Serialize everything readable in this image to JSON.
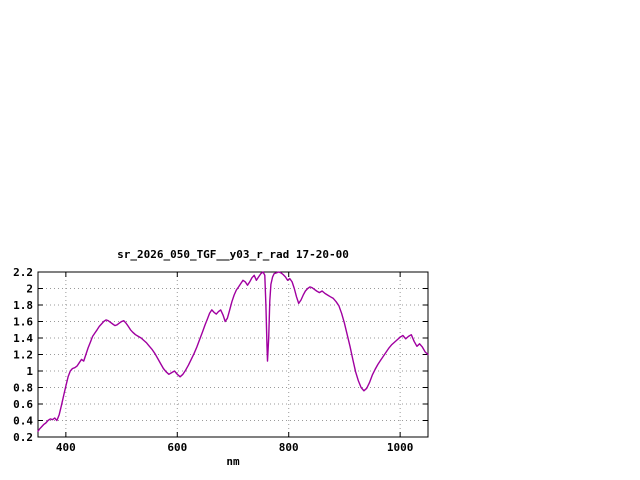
{
  "page": {
    "background": "#ffffff"
  },
  "chart_data": {
    "type": "line",
    "title": "sr_2026_050_TGF__y03_r_rad 17-20-00",
    "xlabel": "nm",
    "ylabel": "",
    "xlim": [
      350,
      1050
    ],
    "ylim": [
      0.2,
      2.2
    ],
    "xticks": [
      400,
      600,
      800,
      1000
    ],
    "yticks": [
      0.2,
      0.4,
      0.6,
      0.8,
      1.0,
      1.2,
      1.4,
      1.6,
      1.8,
      2.0,
      2.2
    ],
    "ytick_labels": [
      "0.2",
      "0.4",
      "0.6",
      "0.8",
      "1",
      "1.2",
      "1.4",
      "1.6",
      "1.8",
      "2",
      "2.2"
    ],
    "grid": true,
    "legend": "none",
    "line_color": "#a000a0",
    "series": [
      {
        "name": "sr_2026_050_TGF__y03_r_rad",
        "points": [
          [
            350,
            0.27
          ],
          [
            353,
            0.3
          ],
          [
            356,
            0.32
          ],
          [
            360,
            0.35
          ],
          [
            364,
            0.37
          ],
          [
            368,
            0.4
          ],
          [
            372,
            0.42
          ],
          [
            376,
            0.41
          ],
          [
            380,
            0.43
          ],
          [
            384,
            0.4
          ],
          [
            388,
            0.47
          ],
          [
            392,
            0.58
          ],
          [
            396,
            0.7
          ],
          [
            400,
            0.82
          ],
          [
            404,
            0.93
          ],
          [
            408,
            1.0
          ],
          [
            412,
            1.03
          ],
          [
            416,
            1.04
          ],
          [
            420,
            1.06
          ],
          [
            424,
            1.1
          ],
          [
            428,
            1.14
          ],
          [
            432,
            1.12
          ],
          [
            436,
            1.2
          ],
          [
            440,
            1.28
          ],
          [
            444,
            1.35
          ],
          [
            448,
            1.42
          ],
          [
            452,
            1.46
          ],
          [
            456,
            1.5
          ],
          [
            460,
            1.54
          ],
          [
            464,
            1.57
          ],
          [
            468,
            1.6
          ],
          [
            472,
            1.62
          ],
          [
            476,
            1.61
          ],
          [
            480,
            1.59
          ],
          [
            484,
            1.57
          ],
          [
            488,
            1.55
          ],
          [
            492,
            1.56
          ],
          [
            496,
            1.58
          ],
          [
            500,
            1.6
          ],
          [
            504,
            1.61
          ],
          [
            508,
            1.58
          ],
          [
            512,
            1.54
          ],
          [
            516,
            1.5
          ],
          [
            520,
            1.47
          ],
          [
            525,
            1.44
          ],
          [
            530,
            1.42
          ],
          [
            535,
            1.4
          ],
          [
            540,
            1.37
          ],
          [
            545,
            1.34
          ],
          [
            550,
            1.3
          ],
          [
            555,
            1.26
          ],
          [
            560,
            1.21
          ],
          [
            565,
            1.15
          ],
          [
            570,
            1.09
          ],
          [
            575,
            1.03
          ],
          [
            580,
            0.99
          ],
          [
            585,
            0.96
          ],
          [
            590,
            0.98
          ],
          [
            595,
            1.0
          ],
          [
            600,
            0.96
          ],
          [
            605,
            0.93
          ],
          [
            610,
            0.96
          ],
          [
            615,
            1.01
          ],
          [
            620,
            1.07
          ],
          [
            625,
            1.14
          ],
          [
            630,
            1.21
          ],
          [
            635,
            1.29
          ],
          [
            640,
            1.38
          ],
          [
            645,
            1.47
          ],
          [
            650,
            1.56
          ],
          [
            654,
            1.63
          ],
          [
            658,
            1.7
          ],
          [
            662,
            1.74
          ],
          [
            666,
            1.71
          ],
          [
            670,
            1.69
          ],
          [
            674,
            1.72
          ],
          [
            678,
            1.74
          ],
          [
            682,
            1.68
          ],
          [
            686,
            1.6
          ],
          [
            690,
            1.64
          ],
          [
            694,
            1.74
          ],
          [
            698,
            1.84
          ],
          [
            702,
            1.92
          ],
          [
            706,
            1.98
          ],
          [
            710,
            2.02
          ],
          [
            714,
            2.06
          ],
          [
            718,
            2.1
          ],
          [
            722,
            2.08
          ],
          [
            726,
            2.04
          ],
          [
            730,
            2.08
          ],
          [
            734,
            2.13
          ],
          [
            738,
            2.16
          ],
          [
            742,
            2.1
          ],
          [
            746,
            2.14
          ],
          [
            750,
            2.18
          ],
          [
            754,
            2.2
          ],
          [
            757,
            2.16
          ],
          [
            759,
            1.8
          ],
          [
            761,
            1.3
          ],
          [
            762,
            1.12
          ],
          [
            764,
            1.4
          ],
          [
            766,
            1.85
          ],
          [
            768,
            2.05
          ],
          [
            771,
            2.14
          ],
          [
            774,
            2.18
          ],
          [
            778,
            2.19
          ],
          [
            782,
            2.2
          ],
          [
            786,
            2.19
          ],
          [
            790,
            2.17
          ],
          [
            794,
            2.14
          ],
          [
            798,
            2.1
          ],
          [
            802,
            2.12
          ],
          [
            806,
            2.08
          ],
          [
            810,
            2.0
          ],
          [
            814,
            1.9
          ],
          [
            818,
            1.82
          ],
          [
            822,
            1.86
          ],
          [
            826,
            1.92
          ],
          [
            830,
            1.97
          ],
          [
            834,
            2.0
          ],
          [
            838,
            2.02
          ],
          [
            842,
            2.01
          ],
          [
            846,
            1.99
          ],
          [
            850,
            1.97
          ],
          [
            855,
            1.95
          ],
          [
            860,
            1.97
          ],
          [
            865,
            1.94
          ],
          [
            870,
            1.92
          ],
          [
            875,
            1.9
          ],
          [
            880,
            1.88
          ],
          [
            885,
            1.84
          ],
          [
            890,
            1.79
          ],
          [
            895,
            1.7
          ],
          [
            900,
            1.58
          ],
          [
            905,
            1.44
          ],
          [
            910,
            1.3
          ],
          [
            915,
            1.14
          ],
          [
            920,
            0.99
          ],
          [
            925,
            0.88
          ],
          [
            930,
            0.8
          ],
          [
            935,
            0.76
          ],
          [
            940,
            0.79
          ],
          [
            945,
            0.86
          ],
          [
            950,
            0.95
          ],
          [
            955,
            1.02
          ],
          [
            960,
            1.08
          ],
          [
            965,
            1.13
          ],
          [
            970,
            1.18
          ],
          [
            975,
            1.23
          ],
          [
            980,
            1.28
          ],
          [
            985,
            1.32
          ],
          [
            990,
            1.35
          ],
          [
            995,
            1.38
          ],
          [
            1000,
            1.41
          ],
          [
            1005,
            1.43
          ],
          [
            1010,
            1.39
          ],
          [
            1015,
            1.42
          ],
          [
            1020,
            1.44
          ],
          [
            1025,
            1.36
          ],
          [
            1030,
            1.3
          ],
          [
            1035,
            1.33
          ],
          [
            1040,
            1.29
          ],
          [
            1045,
            1.23
          ],
          [
            1050,
            1.2
          ]
        ]
      }
    ]
  }
}
